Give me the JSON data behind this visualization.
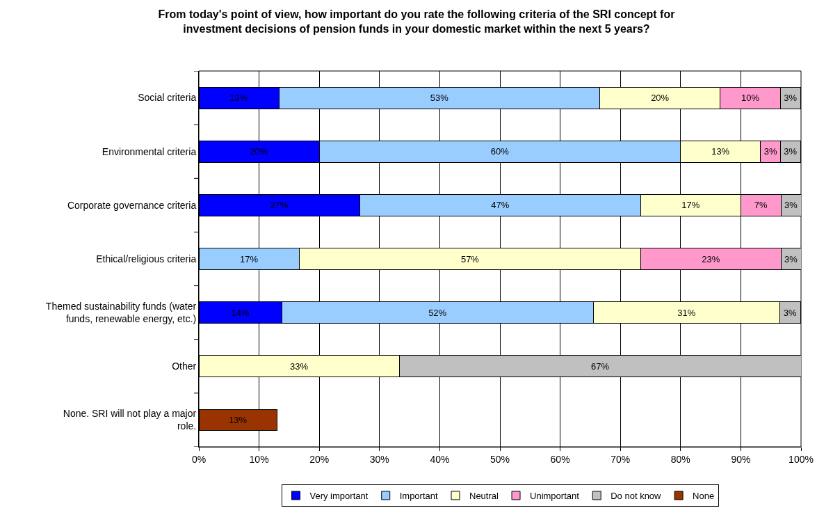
{
  "chart_data": {
    "type": "bar",
    "orientation": "horizontal",
    "stacked": true,
    "title": "From today's point of view, how important do you rate the following criteria of the SRI concept for investment decisions of pension funds in your domestic market within the next 5 years?",
    "categories": [
      "Social criteria",
      "Environmental criteria",
      "Corporate governance criteria",
      "Ethical/religious criteria",
      "Themed sustainability funds (water funds, renewable energy, etc.)",
      "Other",
      "None. SRI will not play a major role."
    ],
    "series": [
      {
        "name": "Very important",
        "color": "#0000ff",
        "values": [
          13.3,
          20,
          26.7,
          null,
          13.8,
          null,
          null
        ],
        "value_labels": [
          "13%",
          "20%",
          "27%",
          null,
          "14%",
          null,
          null
        ]
      },
      {
        "name": "Important",
        "color": "#99ccff",
        "values": [
          53.3,
          60,
          46.7,
          16.7,
          51.7,
          null,
          null
        ],
        "value_labels": [
          "53%",
          "60%",
          "47%",
          "17%",
          "52%",
          null,
          null
        ]
      },
      {
        "name": "Neutral",
        "color": "#ffffcc",
        "values": [
          20,
          13.3,
          16.6,
          56.7,
          31.0,
          33.3,
          null
        ],
        "value_labels": [
          "20%",
          "13%",
          "17%",
          "57%",
          "31%",
          "33%",
          null
        ]
      },
      {
        "name": "Unimportant",
        "color": "#ff99cc",
        "values": [
          10,
          3.3,
          6.7,
          23.3,
          null,
          null,
          null
        ],
        "value_labels": [
          "10%",
          "3%",
          "7%",
          "23%",
          null,
          null,
          null
        ]
      },
      {
        "name": "Do not know",
        "color": "#c0c0c0",
        "values": [
          3.3,
          3.3,
          3.3,
          3.3,
          3.4,
          66.7,
          null
        ],
        "value_labels": [
          "3%",
          "3%",
          "3%",
          "3%",
          "3%",
          "67%",
          null
        ]
      },
      {
        "name": "None",
        "color": "#993300",
        "values": [
          null,
          null,
          null,
          null,
          null,
          null,
          13
        ],
        "value_labels": [
          null,
          null,
          null,
          null,
          null,
          null,
          "13%"
        ]
      }
    ],
    "xlim": [
      0,
      100
    ],
    "xticks": [
      {
        "value": 0,
        "label": "0%"
      },
      {
        "value": 10,
        "label": "10%"
      },
      {
        "value": 20,
        "label": "20%"
      },
      {
        "value": 30,
        "label": "30%"
      },
      {
        "value": 40,
        "label": "40%"
      },
      {
        "value": 50,
        "label": "50%"
      },
      {
        "value": 60,
        "label": "60%"
      },
      {
        "value": 70,
        "label": "70%"
      },
      {
        "value": 80,
        "label": "80%"
      },
      {
        "value": 90,
        "label": "90%"
      },
      {
        "value": 100,
        "label": "100%"
      }
    ],
    "grid": "x",
    "legend": "bottom"
  }
}
